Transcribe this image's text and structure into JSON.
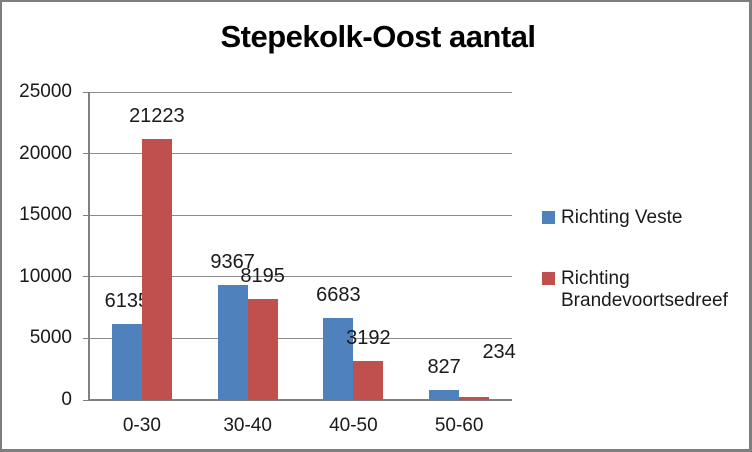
{
  "window": {
    "background": "#ffffff",
    "border_color": "#7e7e7e"
  },
  "chart_data": {
    "type": "bar",
    "title": "Stepekolk-Oost aantal",
    "categories": [
      "0-30",
      "30-40",
      "40-50",
      "50-60"
    ],
    "series": [
      {
        "name": "Richting Veste",
        "color": "#4f81bd",
        "values": [
          6135,
          9367,
          6683,
          827
        ]
      },
      {
        "name": "Richting Brandevoortsedreef",
        "color": "#c0504d",
        "values": [
          21223,
          8195,
          3192,
          234
        ]
      }
    ],
    "xlabel": "",
    "ylabel": "",
    "ylim": [
      0,
      25000
    ],
    "ytick_step": 5000,
    "yticks": [
      0,
      5000,
      10000,
      15000,
      20000,
      25000
    ],
    "ytick_labels": [
      "0",
      "5000",
      "10000",
      "15000",
      "20000",
      "25000"
    ],
    "grid": true,
    "gridline_color": "#8c8c8c",
    "axis_color": "#808080",
    "data_labels": true,
    "legend_position": "right"
  }
}
